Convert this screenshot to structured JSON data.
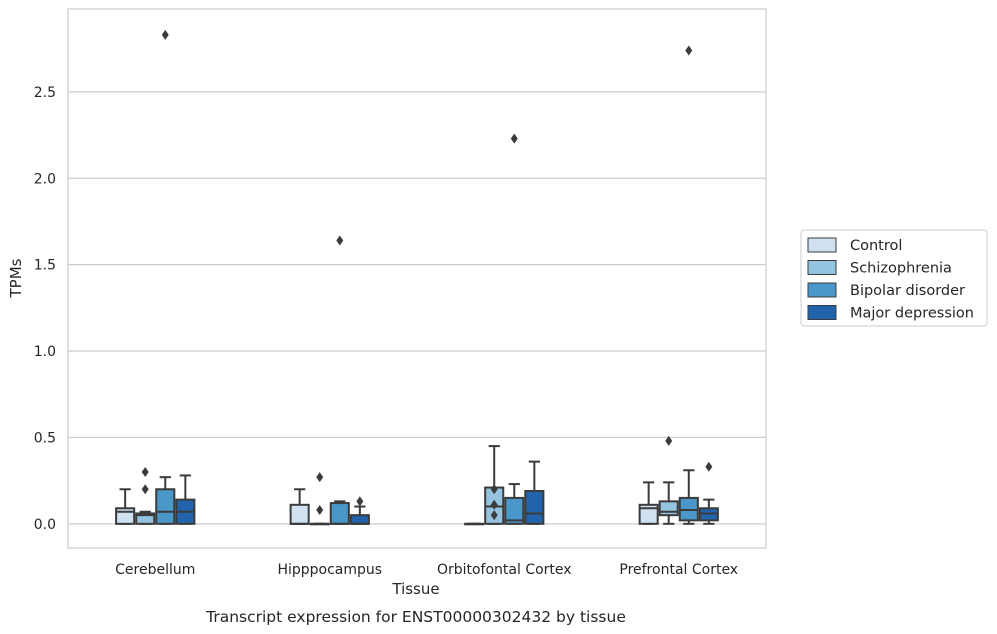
{
  "chart_data": {
    "type": "box",
    "title": "",
    "caption": "Transcript expression for ENST00000302432 by tissue",
    "xlabel": "Tissue",
    "ylabel": "TPMs",
    "ylim": [
      -0.14,
      2.98
    ],
    "yticks": [
      0.0,
      0.5,
      1.0,
      1.5,
      2.0,
      2.5
    ],
    "ytick_labels": [
      "0.0",
      "0.5",
      "1.0",
      "1.5",
      "2.0",
      "2.5"
    ],
    "grid": "horizontal",
    "legend_position": "right",
    "categories": [
      "Cerebellum",
      "Hipppocampus",
      "Orbitofontal Cortex",
      "Prefrontal Cortex"
    ],
    "series": [
      {
        "name": "Control",
        "color": "#d0e1f2",
        "boxes": [
          {
            "whislo": 0.0,
            "q1": 0.0,
            "med": 0.07,
            "q3": 0.09,
            "whishi": 0.2,
            "fliers": []
          },
          {
            "whislo": 0.0,
            "q1": 0.0,
            "med": 0.0,
            "q3": 0.11,
            "whishi": 0.2,
            "fliers": []
          },
          {
            "whislo": 0.0,
            "q1": 0.0,
            "med": 0.0,
            "q3": 0.0,
            "whishi": 0.0,
            "fliers": []
          },
          {
            "whislo": 0.0,
            "q1": 0.0,
            "med": 0.09,
            "q3": 0.11,
            "whishi": 0.24,
            "fliers": []
          }
        ]
      },
      {
        "name": "Schizophrenia",
        "color": "#94c4df",
        "boxes": [
          {
            "whislo": 0.0,
            "q1": 0.0,
            "med": 0.05,
            "q3": 0.06,
            "whishi": 0.07,
            "fliers": [
              0.2,
              0.3
            ]
          },
          {
            "whislo": 0.0,
            "q1": 0.0,
            "med": 0.0,
            "q3": 0.0,
            "whishi": 0.0,
            "fliers": [
              0.08,
              0.27
            ]
          },
          {
            "whislo": 0.0,
            "q1": 0.0,
            "med": 0.1,
            "q3": 0.21,
            "whishi": 0.45,
            "fliers": [
              0.05,
              0.11,
              0.2
            ]
          },
          {
            "whislo": 0.0,
            "q1": 0.05,
            "med": 0.07,
            "q3": 0.13,
            "whishi": 0.24,
            "fliers": [
              0.48
            ]
          }
        ]
      },
      {
        "name": "Bipolar disorder",
        "color": "#4a98c9",
        "boxes": [
          {
            "whislo": 0.0,
            "q1": 0.0,
            "med": 0.07,
            "q3": 0.2,
            "whishi": 0.27,
            "fliers": [
              2.83
            ]
          },
          {
            "whislo": 0.0,
            "q1": 0.0,
            "med": 0.0,
            "q3": 0.12,
            "whishi": 0.13,
            "fliers": [
              1.64
            ]
          },
          {
            "whislo": 0.0,
            "q1": 0.0,
            "med": 0.02,
            "q3": 0.15,
            "whishi": 0.23,
            "fliers": [
              2.23
            ]
          },
          {
            "whislo": 0.0,
            "q1": 0.02,
            "med": 0.08,
            "q3": 0.15,
            "whishi": 0.31,
            "fliers": [
              2.74
            ]
          }
        ]
      },
      {
        "name": "Major depression",
        "color": "#2164ab",
        "boxes": [
          {
            "whislo": 0.0,
            "q1": 0.0,
            "med": 0.07,
            "q3": 0.14,
            "whishi": 0.28,
            "fliers": []
          },
          {
            "whislo": 0.0,
            "q1": 0.0,
            "med": 0.0,
            "q3": 0.05,
            "whishi": 0.1,
            "fliers": [
              0.13
            ]
          },
          {
            "whislo": 0.0,
            "q1": 0.0,
            "med": 0.06,
            "q3": 0.19,
            "whishi": 0.36,
            "fliers": []
          },
          {
            "whislo": 0.0,
            "q1": 0.02,
            "med": 0.06,
            "q3": 0.09,
            "whishi": 0.14,
            "fliers": [
              0.33
            ]
          }
        ]
      }
    ]
  }
}
